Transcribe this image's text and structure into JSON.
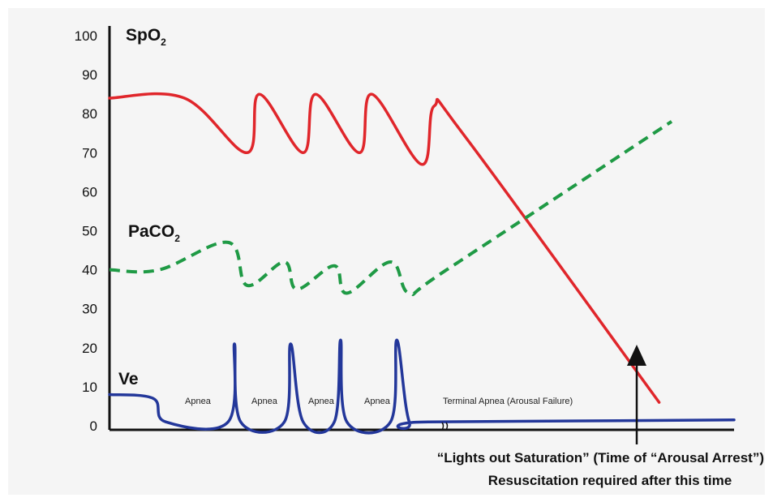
{
  "chart_data": {
    "type": "line",
    "yticks": [
      "100",
      "90",
      "80",
      "70",
      "60",
      "50",
      "40",
      "30",
      "20",
      "10",
      "0"
    ],
    "ylim": [
      0,
      100
    ],
    "xlim": [
      0,
      100
    ],
    "colors": {
      "spo2": "#e0262b",
      "paco2": "#1f9a45",
      "ve": "#23379a"
    },
    "series": [
      {
        "name": "SpO",
        "subscript": "2",
        "color": "#e0262b",
        "style": "solid",
        "points": [
          [
            0,
            84
          ],
          [
            12,
            84
          ],
          [
            22,
            70
          ],
          [
            24,
            85
          ],
          [
            31,
            70
          ],
          [
            33,
            85
          ],
          [
            40,
            70
          ],
          [
            42,
            85
          ],
          [
            50,
            67
          ],
          [
            52,
            82
          ],
          [
            57,
            74
          ],
          [
            88,
            6
          ]
        ]
      },
      {
        "name": "PaCO",
        "subscript": "2",
        "color": "#1f9a45",
        "style": "dashed",
        "points": [
          [
            0,
            40
          ],
          [
            8,
            40
          ],
          [
            19,
            47
          ],
          [
            22,
            36
          ],
          [
            28,
            42
          ],
          [
            30,
            35
          ],
          [
            36,
            41
          ],
          [
            38,
            34
          ],
          [
            45,
            42
          ],
          [
            48,
            34
          ],
          [
            54,
            40
          ],
          [
            90,
            78
          ]
        ]
      },
      {
        "name": "Ve",
        "color": "#23379a",
        "style": "solid",
        "points": [
          [
            0,
            8
          ],
          [
            7,
            7
          ],
          [
            9,
            1
          ],
          [
            19,
            1
          ],
          [
            20,
            21
          ],
          [
            21,
            1
          ],
          [
            28,
            1
          ],
          [
            29,
            21
          ],
          [
            31,
            1
          ],
          [
            36,
            1
          ],
          [
            37,
            22
          ],
          [
            38,
            1
          ],
          [
            45,
            1
          ],
          [
            46,
            22
          ],
          [
            48,
            1
          ],
          [
            51,
            1
          ],
          [
            100,
            1.5
          ]
        ]
      }
    ],
    "annotations": {
      "apnea_labels": [
        "Apnea",
        "Apnea",
        "Apnea",
        "Apnea"
      ],
      "terminal_label": "Terminal Apnea (Arousal Failure)",
      "note_line1": "“Lights out Saturation” (Time of “Arousal Arrest”)",
      "note_line2": "Resuscitation required after this time"
    }
  }
}
